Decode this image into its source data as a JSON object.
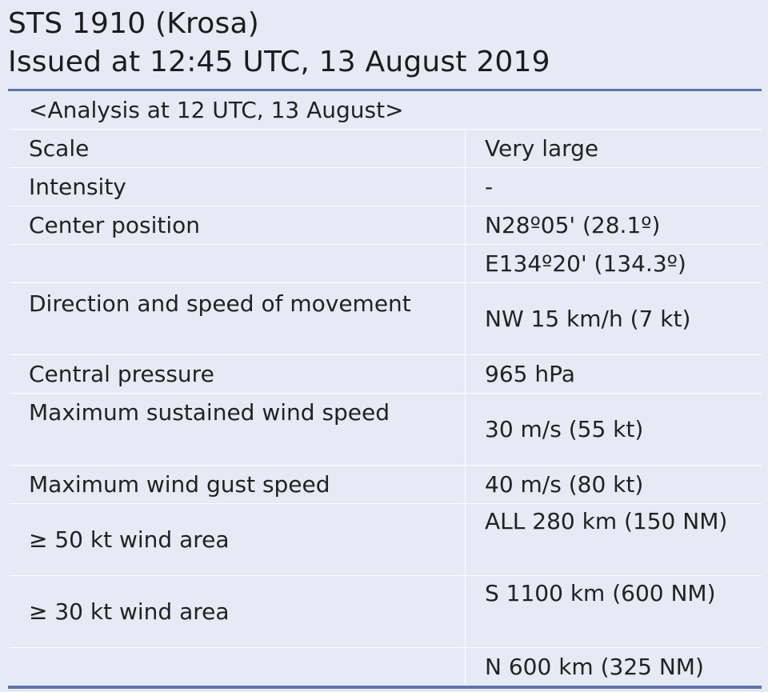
{
  "header": {
    "title": "STS 1910 (Krosa)",
    "issued": "Issued at 12:45 UTC, 13 August 2019"
  },
  "table": {
    "section_title": "<Analysis at 12 UTC, 13 August>",
    "rows": [
      {
        "label": "Scale",
        "value": "Very large"
      },
      {
        "label": "Intensity",
        "value": "-"
      },
      {
        "label": "Center position",
        "value": "N28º05' (28.1º)"
      },
      {
        "label": "",
        "value": "E134º20' (134.3º)"
      },
      {
        "label": "Direction and speed of movement",
        "value": "NW 15 km/h (7 kt)"
      },
      {
        "label": "Central pressure",
        "value": "965 hPa"
      },
      {
        "label": "Maximum sustained wind speed",
        "value": "30 m/s (55 kt)"
      },
      {
        "label": "Maximum wind gust speed",
        "value": "40 m/s (80 kt)"
      },
      {
        "label": "≥ 50 kt wind area",
        "value": "ALL 280 km (150 NM)"
      },
      {
        "label": "≥ 30 kt wind area",
        "value": "S 1100 km (600 NM)"
      },
      {
        "label": "",
        "value": "N 600 km (325 NM)"
      }
    ]
  },
  "colors": {
    "background": "#e6eaf4",
    "rule": "#5a73b0",
    "text": "#222222"
  }
}
